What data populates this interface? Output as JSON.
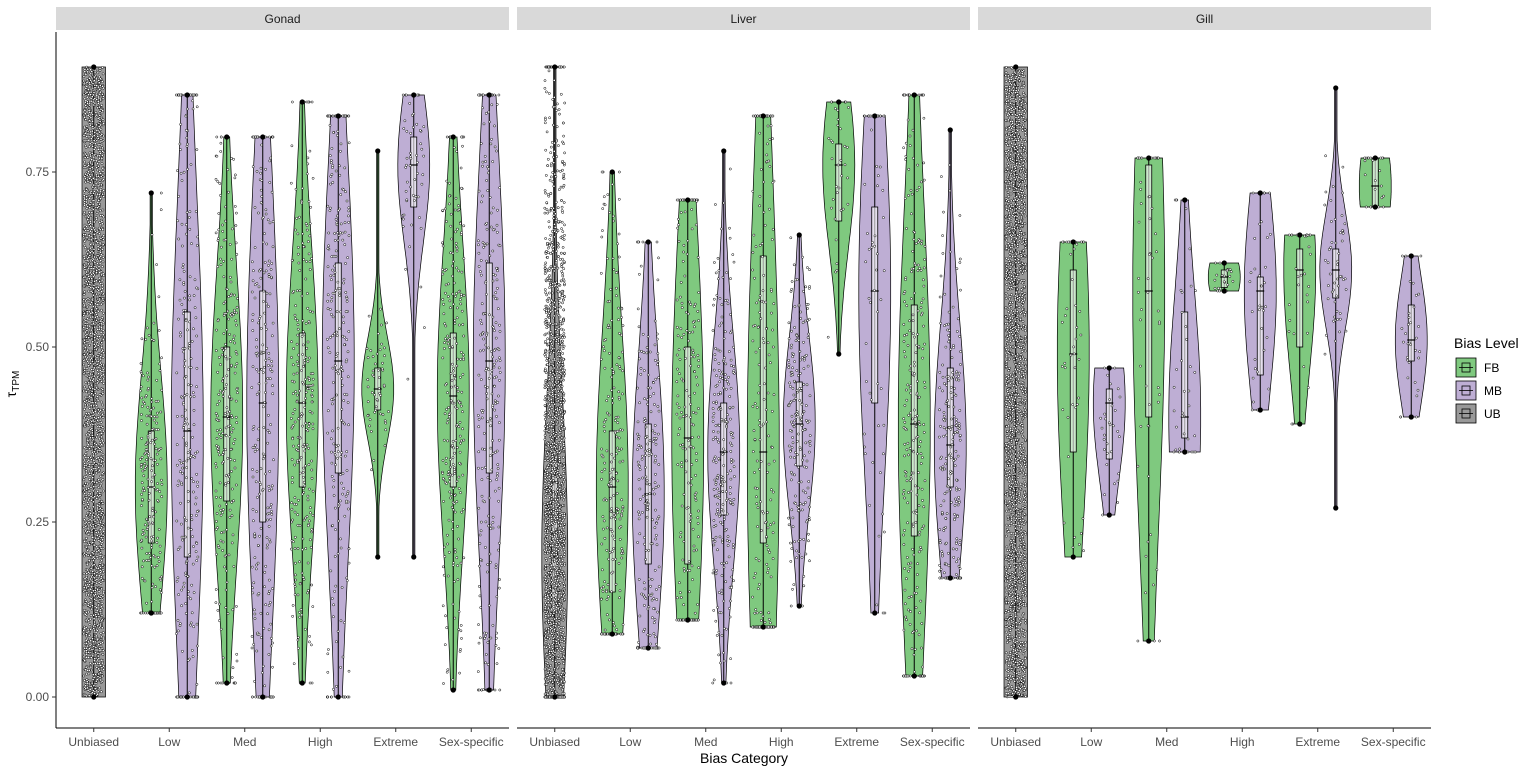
{
  "chart_data": {
    "type": "violin",
    "xlabel": "Bias Category",
    "ylabel": "τ",
    "ylabel_sub": "TPM",
    "ylim": [
      0,
      0.95
    ],
    "yticks": [
      0.0,
      0.25,
      0.5,
      0.75
    ],
    "ytick_labels": [
      "0.00",
      "0.25",
      "0.50",
      "0.75"
    ],
    "categories": [
      "Unbiased",
      "Low",
      "Med",
      "High",
      "Extreme",
      "Sex-specific"
    ],
    "legend": {
      "title": "Bias Level",
      "position": "right",
      "items": [
        {
          "label": "FB",
          "color": "#7fc97f"
        },
        {
          "label": "MB",
          "color": "#beaed4"
        },
        {
          "label": "UB",
          "color": "#999999"
        }
      ]
    },
    "panels": [
      {
        "title": "Gonad",
        "groups": [
          {
            "category": "Unbiased",
            "level": "UB",
            "min": 0.0,
            "q1": 0.0,
            "median": 0.0,
            "q3": 0.0,
            "max": 0.9,
            "density": "uniform"
          },
          {
            "category": "Low",
            "level": "FB",
            "min": 0.12,
            "q1": 0.22,
            "median": 0.3,
            "q3": 0.38,
            "max": 0.72
          },
          {
            "category": "Low",
            "level": "MB",
            "min": 0.0,
            "q1": 0.2,
            "median": 0.38,
            "q3": 0.55,
            "max": 0.86
          },
          {
            "category": "Med",
            "level": "FB",
            "min": 0.02,
            "q1": 0.28,
            "median": 0.4,
            "q3": 0.5,
            "max": 0.8
          },
          {
            "category": "Med",
            "level": "MB",
            "min": 0.0,
            "q1": 0.25,
            "median": 0.42,
            "q3": 0.58,
            "max": 0.8
          },
          {
            "category": "High",
            "level": "FB",
            "min": 0.02,
            "q1": 0.3,
            "median": 0.42,
            "q3": 0.52,
            "max": 0.85
          },
          {
            "category": "High",
            "level": "MB",
            "min": 0.0,
            "q1": 0.32,
            "median": 0.48,
            "q3": 0.62,
            "max": 0.83
          },
          {
            "category": "Extreme",
            "level": "FB",
            "min": 0.2,
            "q1": 0.41,
            "median": 0.44,
            "q3": 0.47,
            "max": 0.78
          },
          {
            "category": "Extreme",
            "level": "MB",
            "min": 0.2,
            "q1": 0.7,
            "median": 0.76,
            "q3": 0.8,
            "max": 0.86
          },
          {
            "category": "Sex-specific",
            "level": "FB",
            "min": 0.01,
            "q1": 0.3,
            "median": 0.43,
            "q3": 0.52,
            "max": 0.8
          },
          {
            "category": "Sex-specific",
            "level": "MB",
            "min": 0.01,
            "q1": 0.32,
            "median": 0.48,
            "q3": 0.62,
            "max": 0.86
          }
        ]
      },
      {
        "title": "Liver",
        "groups": [
          {
            "category": "Unbiased",
            "level": "UB",
            "min": 0.0,
            "q1": 0.12,
            "median": 0.2,
            "q3": 0.35,
            "max": 0.9
          },
          {
            "category": "Low",
            "level": "FB",
            "min": 0.09,
            "q1": 0.15,
            "median": 0.3,
            "q3": 0.38,
            "max": 0.75
          },
          {
            "category": "Low",
            "level": "MB",
            "min": 0.07,
            "q1": 0.19,
            "median": 0.29,
            "q3": 0.39,
            "max": 0.65
          },
          {
            "category": "Med",
            "level": "FB",
            "min": 0.11,
            "q1": 0.19,
            "median": 0.37,
            "q3": 0.5,
            "max": 0.71
          },
          {
            "category": "Med",
            "level": "MB",
            "min": 0.02,
            "q1": 0.26,
            "median": 0.35,
            "q3": 0.42,
            "max": 0.78
          },
          {
            "category": "High",
            "level": "FB",
            "min": 0.1,
            "q1": 0.22,
            "median": 0.35,
            "q3": 0.63,
            "max": 0.83
          },
          {
            "category": "High",
            "level": "MB",
            "min": 0.13,
            "q1": 0.33,
            "median": 0.39,
            "q3": 0.45,
            "max": 0.66
          },
          {
            "category": "Extreme",
            "level": "FB",
            "min": 0.49,
            "q1": 0.68,
            "median": 0.76,
            "q3": 0.79,
            "max": 0.85
          },
          {
            "category": "Extreme",
            "level": "MB",
            "min": 0.12,
            "q1": 0.42,
            "median": 0.58,
            "q3": 0.7,
            "max": 0.83
          },
          {
            "category": "Sex-specific",
            "level": "FB",
            "min": 0.03,
            "q1": 0.23,
            "median": 0.39,
            "q3": 0.56,
            "max": 0.86
          },
          {
            "category": "Sex-specific",
            "level": "MB",
            "min": 0.17,
            "q1": 0.3,
            "median": 0.36,
            "q3": 0.47,
            "max": 0.81
          }
        ]
      },
      {
        "title": "Gill",
        "groups": [
          {
            "category": "Unbiased",
            "level": "UB",
            "min": 0.0,
            "q1": 0.0,
            "median": 0.0,
            "q3": 0.0,
            "max": 0.9,
            "density": "uniform"
          },
          {
            "category": "Low",
            "level": "FB",
            "min": 0.2,
            "q1": 0.35,
            "median": 0.49,
            "q3": 0.61,
            "max": 0.65
          },
          {
            "category": "Low",
            "level": "MB",
            "min": 0.26,
            "q1": 0.34,
            "median": 0.42,
            "q3": 0.44,
            "max": 0.47
          },
          {
            "category": "Med",
            "level": "FB",
            "min": 0.08,
            "q1": 0.4,
            "median": 0.58,
            "q3": 0.76,
            "max": 0.77
          },
          {
            "category": "Med",
            "level": "MB",
            "min": 0.35,
            "q1": 0.37,
            "median": 0.4,
            "q3": 0.55,
            "max": 0.71
          },
          {
            "category": "High",
            "level": "FB",
            "min": 0.58,
            "q1": 0.585,
            "median": 0.6,
            "q3": 0.61,
            "max": 0.62
          },
          {
            "category": "High",
            "level": "MB",
            "min": 0.41,
            "q1": 0.46,
            "median": 0.58,
            "q3": 0.6,
            "max": 0.72
          },
          {
            "category": "Extreme",
            "level": "FB",
            "min": 0.39,
            "q1": 0.5,
            "median": 0.61,
            "q3": 0.64,
            "max": 0.66
          },
          {
            "category": "Extreme",
            "level": "MB",
            "min": 0.27,
            "q1": 0.57,
            "median": 0.61,
            "q3": 0.64,
            "max": 0.87
          },
          {
            "category": "Sex-specific",
            "level": "FB",
            "min": 0.7,
            "q1": 0.7,
            "median": 0.73,
            "q3": 0.77,
            "max": 0.77
          },
          {
            "category": "Sex-specific",
            "level": "MB",
            "min": 0.4,
            "q1": 0.48,
            "median": 0.51,
            "q3": 0.56,
            "max": 0.63
          }
        ]
      }
    ]
  }
}
